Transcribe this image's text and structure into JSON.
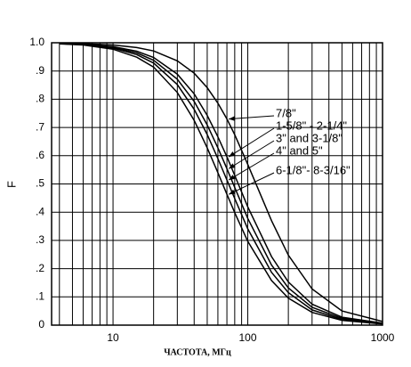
{
  "chart_data": {
    "type": "line",
    "x_label": "ЧАСТОТА, МГц",
    "y_label": "F",
    "log_x": true,
    "grid": true,
    "x": [
      4,
      6,
      10,
      15,
      20,
      30,
      40,
      50,
      60,
      70,
      80,
      100,
      150,
      200,
      300,
      500,
      1000
    ],
    "series": [
      {
        "name": "7/8\"",
        "color": "#000000",
        "values": [
          0.999,
          0.997,
          0.992,
          0.983,
          0.971,
          0.936,
          0.892,
          0.841,
          0.786,
          0.73,
          0.674,
          0.569,
          0.37,
          0.248,
          0.128,
          0.05,
          0.013
        ]
      },
      {
        "name": "1-5/8\" - 2-1/4\"",
        "color": "#000000",
        "values": [
          0.998,
          0.995,
          0.986,
          0.97,
          0.948,
          0.889,
          0.819,
          0.743,
          0.667,
          0.596,
          0.53,
          0.419,
          0.243,
          0.153,
          0.074,
          0.028,
          0.007
        ]
      },
      {
        "name": "3\" and 3-1/8\"",
        "color": "#000000",
        "values": [
          0.997,
          0.994,
          0.984,
          0.964,
          0.938,
          0.871,
          0.792,
          0.709,
          0.628,
          0.554,
          0.487,
          0.378,
          0.213,
          0.132,
          0.063,
          0.024,
          0.006
        ]
      },
      {
        "name": "4\" and 5\"",
        "color": "#000000",
        "values": [
          0.997,
          0.993,
          0.981,
          0.958,
          0.928,
          0.852,
          0.764,
          0.675,
          0.59,
          0.514,
          0.448,
          0.341,
          0.187,
          0.115,
          0.054,
          0.02,
          0.005
        ]
      },
      {
        "name": "6-1/8\"- 8-3/16\"",
        "color": "#000000",
        "values": [
          0.996,
          0.992,
          0.977,
          0.949,
          0.914,
          0.824,
          0.725,
          0.628,
          0.54,
          0.463,
          0.398,
          0.297,
          0.158,
          0.096,
          0.045,
          0.017,
          0.004
        ]
      }
    ],
    "xlim": [
      3.5,
      1000
    ],
    "xticks": [
      10,
      100,
      1000
    ],
    "xminor": [
      4,
      5,
      6,
      7,
      8,
      9,
      20,
      30,
      40,
      50,
      60,
      70,
      80,
      90,
      200,
      300,
      400,
      500,
      600,
      700,
      800,
      900
    ],
    "ylim": [
      0,
      1
    ],
    "yticks": [
      0,
      {
        "value": 0.1,
        "label": ".1"
      },
      {
        "value": 0.2,
        "label": ".2"
      },
      {
        "value": 0.3,
        "label": ".3"
      },
      {
        "value": 0.4,
        "label": ".4"
      },
      {
        "value": 0.5,
        "label": ".5"
      },
      {
        "value": 0.6,
        "label": ".6"
      },
      {
        "value": 0.7,
        "label": ".7"
      },
      {
        "value": 0.8,
        "label": ".8"
      },
      {
        "value": 0.9,
        "label": ".9"
      },
      {
        "value": 1,
        "label": "1.0"
      }
    ]
  }
}
